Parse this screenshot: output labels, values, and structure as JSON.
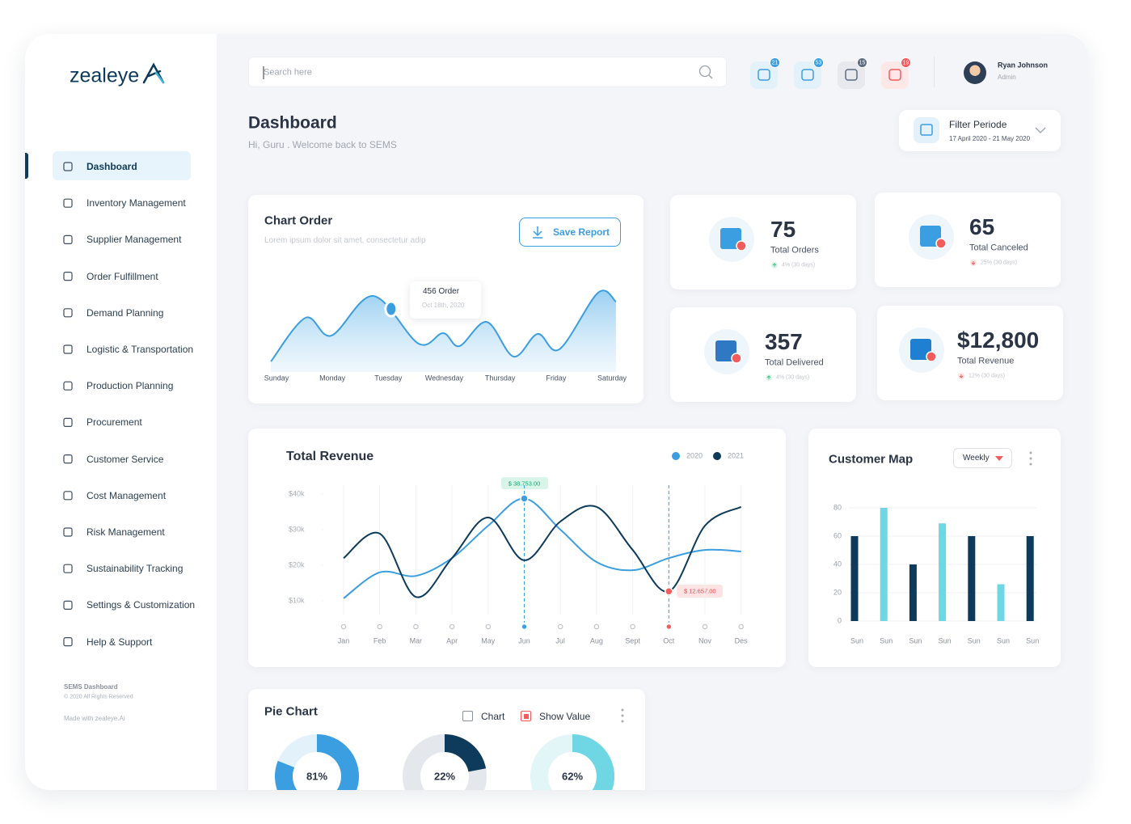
{
  "sidebar": {
    "logo": "zealeye",
    "active": 0,
    "menu": [
      "Dashboard",
      "Inventory Management",
      "Supplier Management",
      "Order Fulfillment",
      "Demand Planning",
      "Logistic & Transportation",
      "Production Planning",
      "Procurement",
      "Customer Service",
      "Cost Management",
      "Risk Management",
      "Sustainability Tracking",
      "Settings & Customization",
      "Help & Support"
    ],
    "footer": {
      "title": "SEMS Dashboard",
      "copyright": "© 2020 All Rights Reserved",
      "credit": "Made with zealeye.Ai"
    }
  },
  "topbar": {
    "search_placeholder": "Search here",
    "notifications": [
      21,
      53,
      15,
      19
    ],
    "user": {
      "name": "Ryan Johnson",
      "role": "Admin"
    }
  },
  "header": {
    "title": "Dashboard",
    "subtitle": "Hi, Guru . Welcome back  to SEMS",
    "filter": {
      "label": "Filter Periode",
      "range": "17 April 2020 - 21 May 2020"
    }
  },
  "stats": [
    {
      "value": "75",
      "label": "Total Orders",
      "change": "4% (30 days)",
      "trend": "up"
    },
    {
      "value": "65",
      "label": "Total Canceled",
      "change": "25% (30 days)",
      "trend": "down"
    },
    {
      "value": "357",
      "label": "Total Delivered",
      "change": "4% (30 days)",
      "trend": "up"
    },
    {
      "value": "$12,800",
      "label": "Total Revenue",
      "change": "12% (30 days)",
      "trend": "down"
    }
  ],
  "chart_order": {
    "type": "area",
    "title": "Chart Order",
    "subtitle": "Lorem ipsum dolor sit amet, consectetur adip",
    "button": "Save Report",
    "categories": [
      "Sunday",
      "Monday",
      "Tuesday",
      "Wednesday",
      "Thursday",
      "Friday",
      "Saturday"
    ],
    "x": [
      -0.1,
      0.52,
      0.98,
      1.73,
      2.54,
      2.98,
      3.27,
      3.76,
      4.24,
      4.67,
      5.06,
      5.75,
      6.07
    ],
    "values": [
      76,
      392,
      263,
      550,
      205,
      281,
      187,
      362,
      111,
      275,
      164,
      573,
      509
    ],
    "ylim": [
      0,
      585
    ],
    "color": "#3b9ee0",
    "marker": {
      "x": 2.05,
      "value": 456,
      "label": "456 Order",
      "date": "Oct 18th, 2020"
    }
  },
  "total_revenue": {
    "type": "line",
    "title": "Total Revenue",
    "categories": [
      "Jan",
      "Feb",
      "Mar",
      "Apr",
      "May",
      "Jun",
      "Jul",
      "Aug",
      "Sept",
      "Oct",
      "Nov",
      "Des"
    ],
    "series": [
      {
        "name": "2020",
        "color": "#3b9ee0",
        "values": [
          10700,
          18000,
          17000,
          22000,
          31100,
          38753,
          30000,
          20900,
          18600,
          22000,
          24300,
          23900
        ],
        "value_labels": [
          null,
          null,
          null,
          null,
          null,
          "$ 38.753.00",
          null,
          null,
          null,
          null,
          null,
          null
        ]
      },
      {
        "name": "2021",
        "color": "#0e3a5b",
        "values": [
          22000,
          28900,
          11100,
          22000,
          33400,
          21400,
          32300,
          36400,
          24300,
          12657,
          31100,
          36400
        ],
        "value_labels": [
          null,
          null,
          null,
          null,
          null,
          null,
          null,
          null,
          null,
          "$ 12.657.00",
          null,
          null
        ]
      }
    ],
    "ylim": [
      5000,
      42500
    ],
    "yticks": [
      {
        "value": 10000,
        "label": "$10k"
      },
      {
        "value": 20000,
        "label": "$20k"
      },
      {
        "value": 30000,
        "label": "$30k"
      },
      {
        "value": 40000,
        "label": "$40k"
      }
    ]
  },
  "customer_map": {
    "type": "bar",
    "title": "Customer Map",
    "filter": "Weekly",
    "categories": [
      "Sun",
      "Sun",
      "Sun",
      "Sun",
      "Sun",
      "Sun",
      "Sun"
    ],
    "values": [
      60,
      80,
      40,
      69,
      60,
      26,
      60
    ],
    "colors": [
      "#0e3a5b",
      "#6fd6e3",
      "#0e3a5b",
      "#6fd6e3",
      "#0e3a5b",
      "#6fd6e3",
      "#0e3a5b"
    ],
    "ylim": [
      0,
      80
    ],
    "yticks": [
      0,
      20,
      40,
      60,
      80
    ],
    "grid": true
  },
  "pie_chart": {
    "type": "donut",
    "title": "Pie Chart",
    "toggles": [
      {
        "label": "Chart",
        "checked": false
      },
      {
        "label": "Show Value",
        "checked": true
      }
    ],
    "values": [
      81,
      22,
      62
    ],
    "value_labels": [
      "81%",
      "22%",
      "62%"
    ],
    "colors": [
      "#3b9ee0",
      "#0e3a5b",
      "#6fd6e3"
    ],
    "track_colors": [
      "#e3f1fb",
      "#e4e8ec",
      "#e2f6f8"
    ]
  }
}
